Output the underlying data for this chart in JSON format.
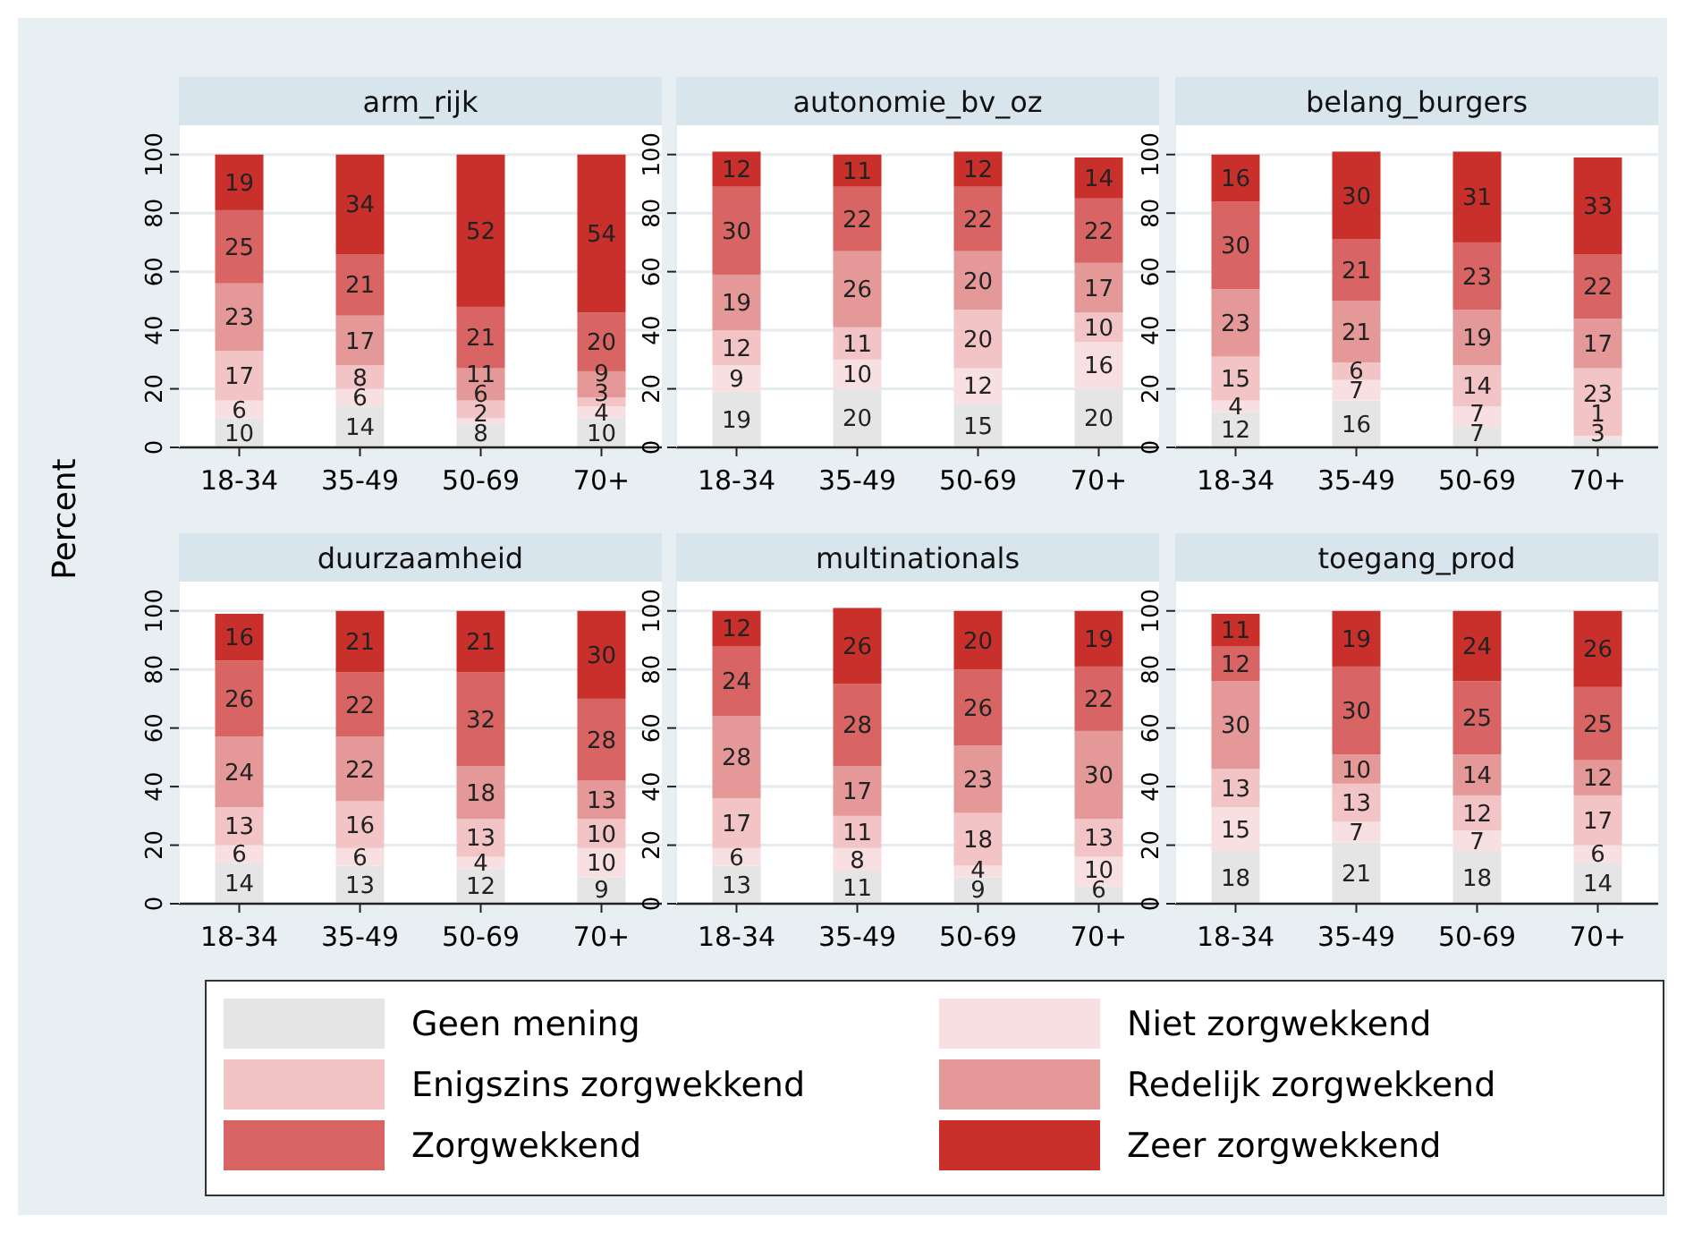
{
  "chart_data": [
    {
      "type": "bar",
      "stacked": true,
      "title": "arm_rijk",
      "ylabel": "Percent",
      "categories": [
        "18-34",
        "35-49",
        "50-69",
        "70+"
      ],
      "ylim": [
        0,
        110
      ],
      "yticks": [
        0,
        20,
        40,
        60,
        80,
        100
      ],
      "grid": "y",
      "data_labels": true,
      "legend": "bottom",
      "series": [
        {
          "name": "Geen mening",
          "color": "#e5e5e5",
          "values": [
            10,
            14,
            8,
            10
          ]
        },
        {
          "name": "Niet zorgwekkend",
          "color": "#f8e0e2",
          "values": [
            6,
            6,
            2,
            4
          ]
        },
        {
          "name": "Enigszins zorgwekkend",
          "color": "#f2c4c6",
          "values": [
            17,
            8,
            6,
            3
          ]
        },
        {
          "name": "Redelijk zorgwekkend",
          "color": "#e49898",
          "values": [
            23,
            17,
            11,
            9
          ]
        },
        {
          "name": "Zorgwekkend",
          "color": "#d96464",
          "values": [
            25,
            21,
            21,
            20
          ]
        },
        {
          "name": "Zeer zorgwekkend",
          "color": "#c9302c",
          "values": [
            19,
            34,
            52,
            54
          ]
        }
      ]
    },
    {
      "type": "bar",
      "stacked": true,
      "title": "autonomie_bv_oz",
      "categories": [
        "18-34",
        "35-49",
        "50-69",
        "70+"
      ],
      "ylim": [
        0,
        110
      ],
      "yticks": [
        0,
        20,
        40,
        60,
        80,
        100
      ],
      "grid": "y",
      "data_labels": true,
      "series": [
        {
          "color": "#e5e5e5",
          "values": [
            19,
            20,
            15,
            20
          ]
        },
        {
          "color": "#f8e0e2",
          "values": [
            9,
            10,
            12,
            16
          ]
        },
        {
          "color": "#f2c4c6",
          "values": [
            12,
            11,
            20,
            10
          ]
        },
        {
          "color": "#e49898",
          "values": [
            19,
            26,
            20,
            17
          ]
        },
        {
          "color": "#d96464",
          "values": [
            30,
            22,
            22,
            22
          ]
        },
        {
          "color": "#c9302c",
          "values": [
            12,
            11,
            12,
            14
          ]
        }
      ]
    },
    {
      "type": "bar",
      "stacked": true,
      "title": "belang_burgers",
      "categories": [
        "18-34",
        "35-49",
        "50-69",
        "70+"
      ],
      "ylim": [
        0,
        110
      ],
      "yticks": [
        0,
        20,
        40,
        60,
        80,
        100
      ],
      "grid": "y",
      "data_labels": true,
      "series": [
        {
          "color": "#e5e5e5",
          "values": [
            12,
            16,
            7,
            3
          ]
        },
        {
          "color": "#f8e0e2",
          "values": [
            4,
            7,
            7,
            1
          ]
        },
        {
          "color": "#f2c4c6",
          "values": [
            15,
            6,
            14,
            23
          ]
        },
        {
          "color": "#e49898",
          "values": [
            23,
            21,
            19,
            17
          ]
        },
        {
          "color": "#d96464",
          "values": [
            30,
            21,
            23,
            22
          ]
        },
        {
          "color": "#c9302c",
          "values": [
            16,
            30,
            31,
            33
          ]
        }
      ]
    },
    {
      "type": "bar",
      "stacked": true,
      "title": "duurzaamheid",
      "categories": [
        "18-34",
        "35-49",
        "50-69",
        "70+"
      ],
      "ylim": [
        0,
        110
      ],
      "yticks": [
        0,
        20,
        40,
        60,
        80,
        100
      ],
      "grid": "y",
      "data_labels": true,
      "series": [
        {
          "color": "#e5e5e5",
          "values": [
            14,
            13,
            12,
            9
          ]
        },
        {
          "color": "#f8e0e2",
          "values": [
            6,
            6,
            4,
            10
          ]
        },
        {
          "color": "#f2c4c6",
          "values": [
            13,
            16,
            13,
            10
          ]
        },
        {
          "color": "#e49898",
          "values": [
            24,
            22,
            18,
            13
          ]
        },
        {
          "color": "#d96464",
          "values": [
            26,
            22,
            32,
            28
          ]
        },
        {
          "color": "#c9302c",
          "values": [
            16,
            21,
            21,
            30
          ]
        }
      ]
    },
    {
      "type": "bar",
      "stacked": true,
      "title": "multinationals",
      "categories": [
        "18-34",
        "35-49",
        "50-69",
        "70+"
      ],
      "ylim": [
        0,
        110
      ],
      "yticks": [
        0,
        20,
        40,
        60,
        80,
        100
      ],
      "grid": "y",
      "data_labels": true,
      "series": [
        {
          "color": "#e5e5e5",
          "values": [
            13,
            11,
            9,
            6
          ]
        },
        {
          "color": "#f8e0e2",
          "values": [
            6,
            8,
            4,
            10
          ]
        },
        {
          "color": "#f2c4c6",
          "values": [
            17,
            11,
            18,
            13
          ]
        },
        {
          "color": "#e49898",
          "values": [
            28,
            17,
            23,
            30
          ]
        },
        {
          "color": "#d96464",
          "values": [
            24,
            28,
            26,
            22
          ]
        },
        {
          "color": "#c9302c",
          "values": [
            12,
            26,
            20,
            19
          ]
        }
      ]
    },
    {
      "type": "bar",
      "stacked": true,
      "title": "toegang_prod",
      "categories": [
        "18-34",
        "35-49",
        "50-69",
        "70+"
      ],
      "ylim": [
        0,
        110
      ],
      "yticks": [
        0,
        20,
        40,
        60,
        80,
        100
      ],
      "grid": "y",
      "data_labels": true,
      "series": [
        {
          "color": "#e5e5e5",
          "values": [
            18,
            21,
            18,
            14
          ]
        },
        {
          "color": "#f8e0e2",
          "values": [
            15,
            7,
            7,
            6
          ]
        },
        {
          "color": "#f2c4c6",
          "values": [
            13,
            13,
            12,
            17
          ]
        },
        {
          "color": "#e49898",
          "values": [
            30,
            10,
            14,
            12
          ]
        },
        {
          "color": "#d96464",
          "values": [
            12,
            30,
            25,
            25
          ]
        },
        {
          "color": "#c9302c",
          "values": [
            11,
            19,
            24,
            26
          ]
        }
      ]
    }
  ]
}
